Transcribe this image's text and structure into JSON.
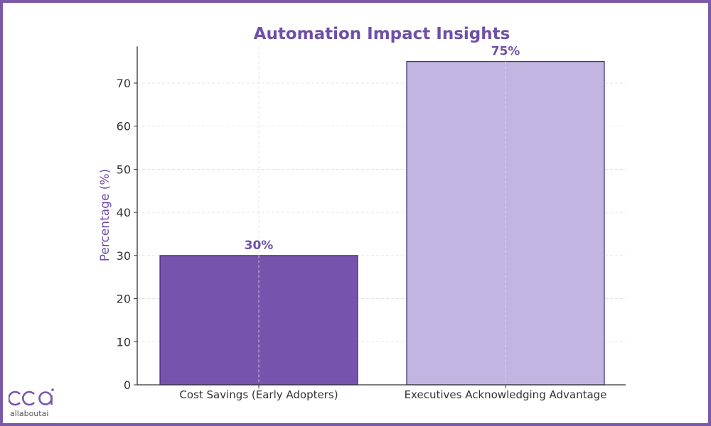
{
  "chart_data": {
    "type": "bar",
    "title": "Automation Impact Insights",
    "xlabel": "",
    "ylabel": "Percentage (%)",
    "categories": [
      "Cost Savings (Early Adopters)",
      "Executives Acknowledging Advantage"
    ],
    "values": [
      30,
      75
    ],
    "data_labels": [
      "30%",
      "75%"
    ],
    "yticks": [
      0,
      10,
      20,
      30,
      40,
      50,
      60,
      70
    ],
    "ylim": [
      0,
      78.5
    ],
    "grid": true,
    "bar_colors": [
      "#7654ae",
      "#c3b5e2"
    ],
    "bar_edge_color": "#3e2a6e",
    "title_color": "#6f4fa8",
    "label_color": "#6f4fa8"
  },
  "logo": {
    "mark": "cca",
    "text": "allaboutai"
  }
}
